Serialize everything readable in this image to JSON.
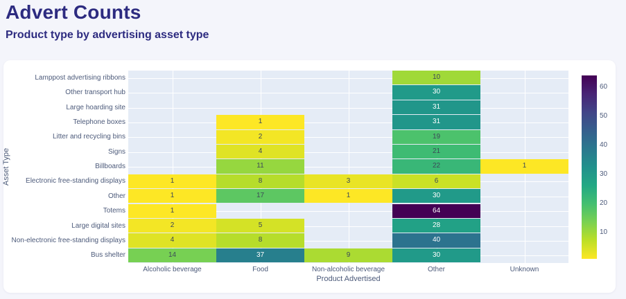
{
  "header": {
    "title": "Advert Counts",
    "subtitle": "Product type by advertising asset type"
  },
  "chart_data": {
    "type": "heatmap",
    "title": "Advert Counts",
    "xlabel": "Product Advertised",
    "ylabel": "Asset Type",
    "x_categories": [
      "Alcoholic beverage",
      "Food",
      "Non-alcoholic beverage",
      "Other",
      "Unknown"
    ],
    "y_categories": [
      "Lamppost advertising ribbons",
      "Other transport hub",
      "Large hoarding site",
      "Telephone boxes",
      "Litter and recycling bins",
      "Signs",
      "Billboards",
      "Electronic free-standing displays",
      "Other",
      "Totems",
      "Large digital sites",
      "Non-electronic free-standing displays",
      "Bus shelter"
    ],
    "rows": [
      [
        null,
        null,
        null,
        10,
        null
      ],
      [
        null,
        null,
        null,
        30,
        null
      ],
      [
        null,
        null,
        null,
        31,
        null
      ],
      [
        null,
        1,
        null,
        31,
        null
      ],
      [
        null,
        2,
        null,
        19,
        null
      ],
      [
        null,
        4,
        null,
        21,
        null
      ],
      [
        null,
        11,
        null,
        22,
        1
      ],
      [
        1,
        8,
        3,
        6,
        null
      ],
      [
        1,
        17,
        1,
        30,
        null
      ],
      [
        1,
        null,
        null,
        64,
        null
      ],
      [
        2,
        5,
        null,
        28,
        null
      ],
      [
        4,
        8,
        null,
        40,
        null
      ],
      [
        14,
        37,
        9,
        30,
        null
      ]
    ],
    "colorscale": {
      "name": "viridis-reversed",
      "description": "low=yellow high=dark-purple",
      "stops": [
        "#440154",
        "#482475",
        "#414487",
        "#355f8d",
        "#2a788e",
        "#21918c",
        "#22a884",
        "#44bf70",
        "#7ad151",
        "#bddf26",
        "#fde725"
      ],
      "min": 1,
      "max": 64,
      "ticks": [
        10,
        20,
        30,
        40,
        50,
        60
      ]
    },
    "layout_hints": {
      "plot_bg": "#e5ecf6",
      "grid_color": "#ffffff",
      "cell_text_dark": "#3c4858",
      "cell_text_light": "#ffffff",
      "tick_color": "#4c5a7a",
      "legend_position": "right-colorbar"
    }
  },
  "colors": {
    "page_bg": "#f4f5fb",
    "card_bg": "#ffffff",
    "heading": "#2d2b80"
  }
}
